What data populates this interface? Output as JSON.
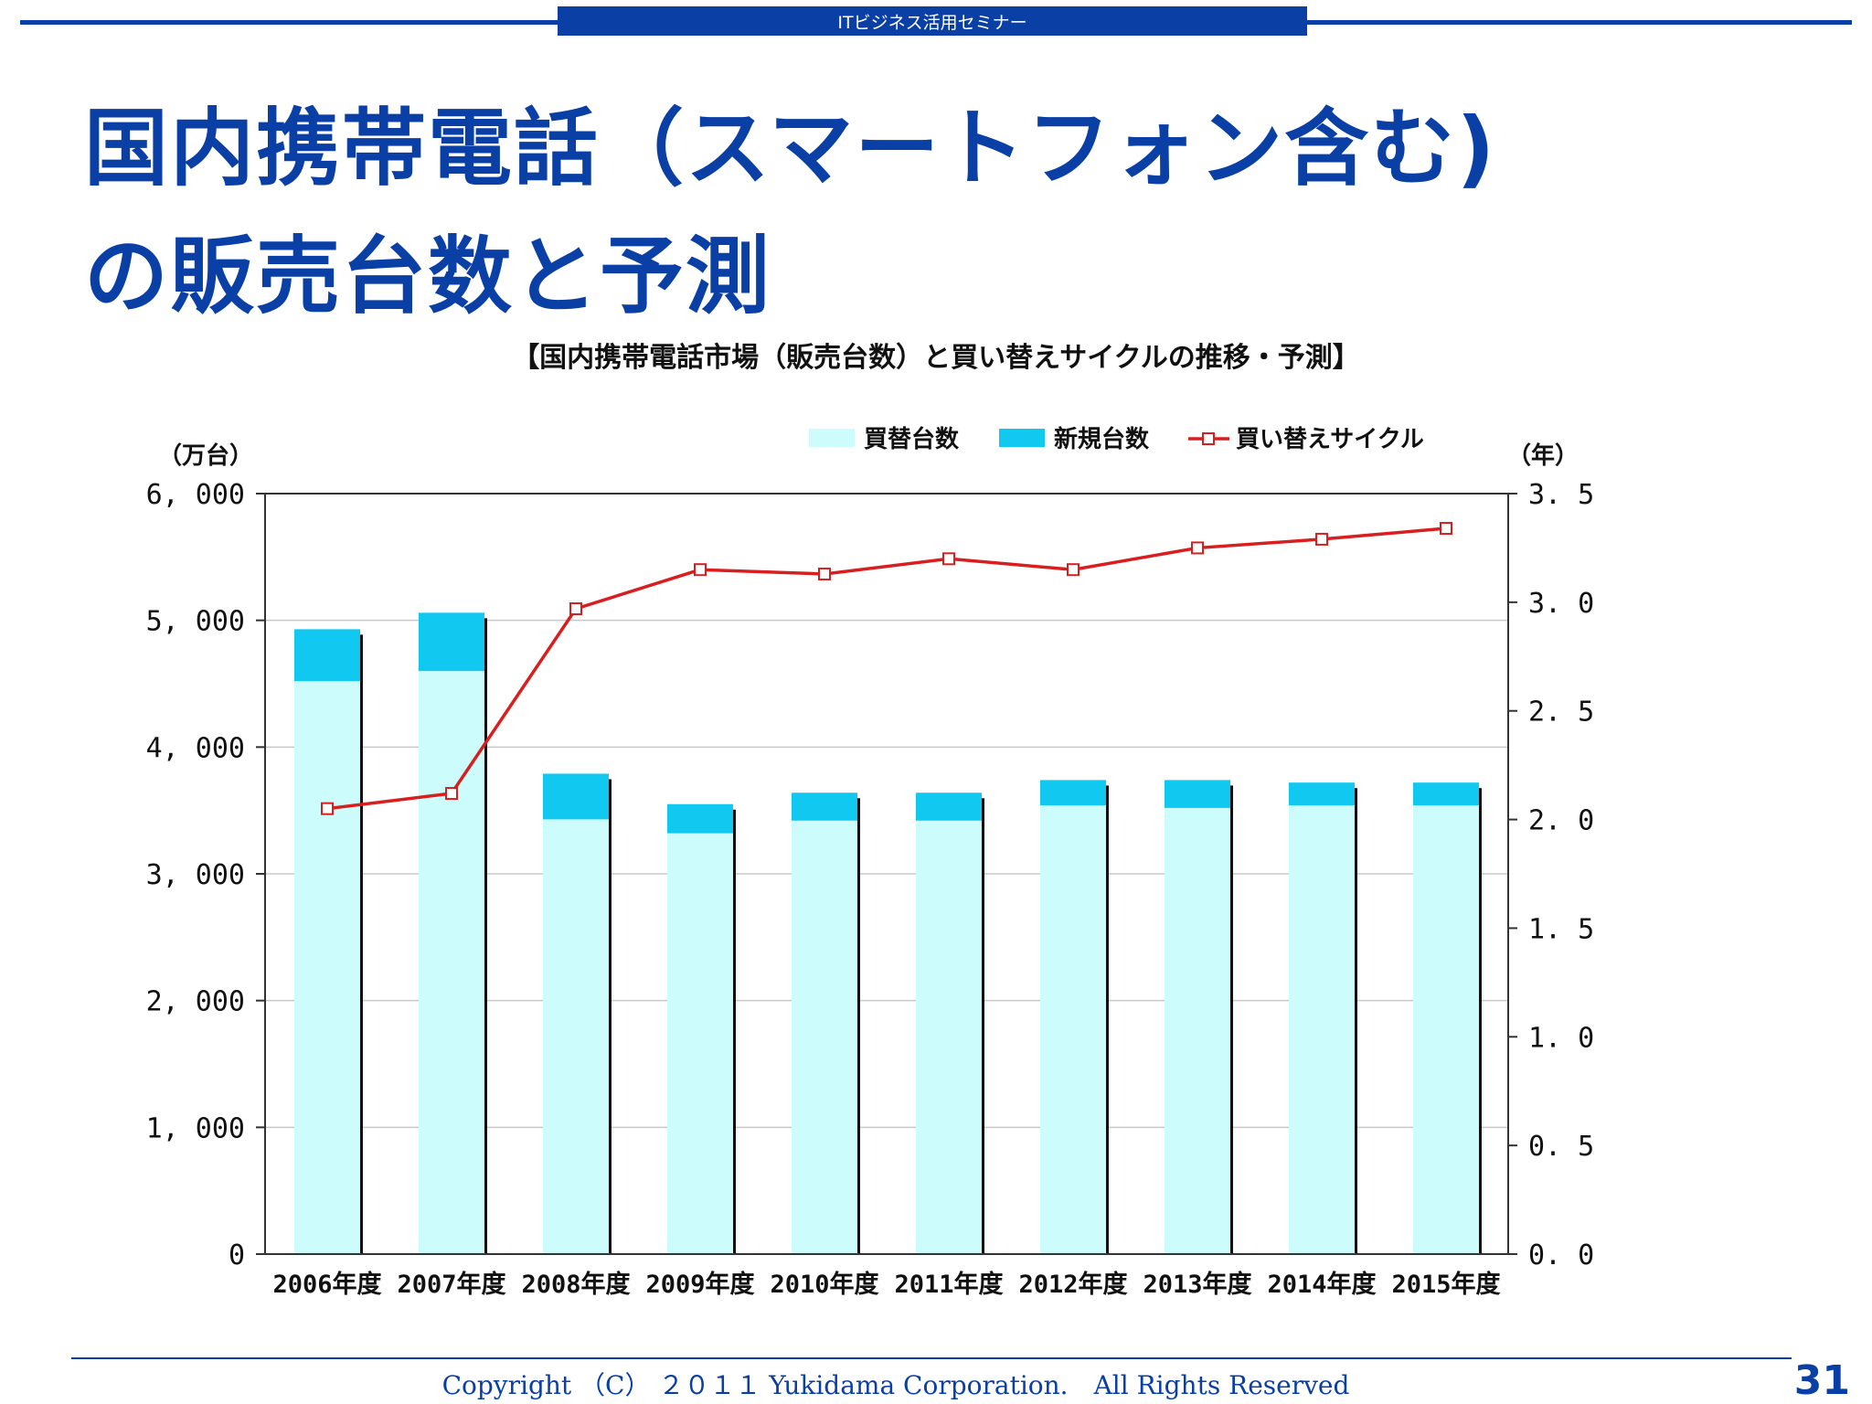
{
  "header": {
    "tab_label": "ITビジネス活用セミナー"
  },
  "slide": {
    "title_line1": "国内携帯電話（スマートフォン含む)",
    "title_line2": "の販売台数と予測"
  },
  "colors": {
    "brand": "#0a3fa6",
    "replacement": "#ccfcfc",
    "new": "#10c8f0",
    "cycle": "#d81e1e"
  },
  "chart_data": {
    "type": "bar",
    "title": "【国内携帯電話市場（販売台数）と買い替えサイクルの推移・予測】",
    "stacked": true,
    "categories": [
      "2006年度",
      "2007年度",
      "2008年度",
      "2009年度",
      "2010年度",
      "2011年度",
      "2012年度",
      "2013年度",
      "2014年度",
      "2015年度"
    ],
    "series": [
      {
        "name": "買替台数",
        "type": "bar",
        "axis": "left",
        "values": [
          4520,
          4600,
          3430,
          3320,
          3420,
          3420,
          3540,
          3520,
          3540,
          3540
        ]
      },
      {
        "name": "新規台数",
        "type": "bar",
        "axis": "left",
        "values": [
          410,
          460,
          360,
          230,
          220,
          220,
          200,
          220,
          180,
          180
        ]
      },
      {
        "name": "買い替えサイクル",
        "type": "line",
        "axis": "right",
        "values": [
          2.05,
          2.12,
          2.97,
          3.15,
          3.13,
          3.2,
          3.15,
          3.25,
          3.29,
          3.34
        ]
      }
    ],
    "left_axis": {
      "unit": "（万台）",
      "ylim": [
        0,
        6000
      ],
      "ticks": [
        "0",
        "1, 000",
        "2, 000",
        "3, 000",
        "4, 000",
        "5, 000",
        "6, 000"
      ]
    },
    "right_axis": {
      "unit": "（年）",
      "ylim": [
        0,
        3.5
      ],
      "ticks": [
        "0. 0",
        "0. 5",
        "1. 0",
        "1. 5",
        "2. 0",
        "2. 5",
        "3. 0",
        "3. 5"
      ]
    },
    "grid": true,
    "legend_position": "top-right"
  },
  "footer": {
    "copyright": "Copyright （C） ２０１１ Yukidama Corporation.　All Rights Reserved",
    "page_number": "31"
  }
}
